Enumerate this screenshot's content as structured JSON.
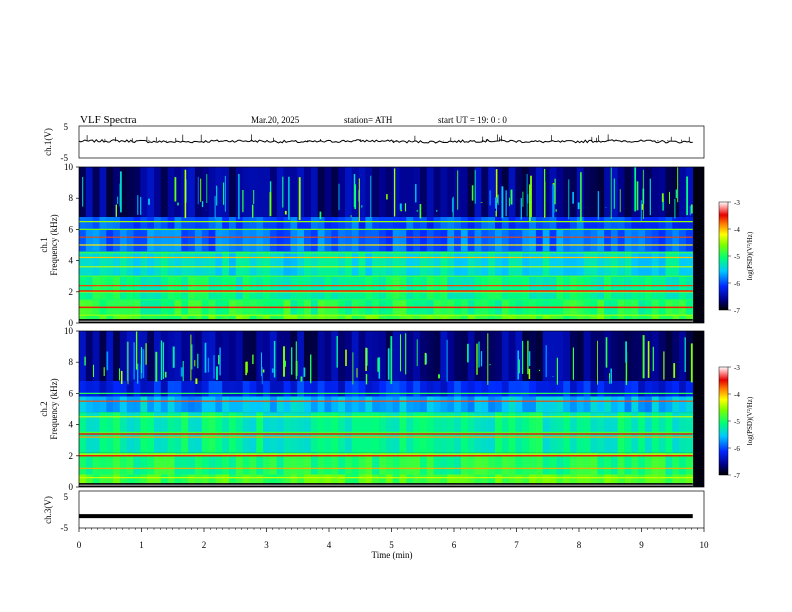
{
  "header": {
    "title": "VLF  Spectra",
    "date": "Mar.20, 2025",
    "station": "station= ATH",
    "start": "start  UT  =    19: 0   : 0"
  },
  "chart_data": [
    {
      "type": "line",
      "name_label": "ch.1(V)",
      "ylabel": "ch.1(V)",
      "ylim": [
        -5,
        5
      ],
      "yticks": [
        "5",
        "-5"
      ],
      "xlim": [
        0,
        10
      ],
      "trace_level": 0.2,
      "trace_amplitude": 0.4,
      "trace_end": 9.82
    },
    {
      "type": "heatmap",
      "ylabel": "Frequency  (kHz)",
      "channel_label": "ch.1",
      "ylim": [
        0,
        10
      ],
      "yticks": [
        "0",
        "2",
        "4",
        "6",
        "8",
        "10"
      ],
      "xlim": [
        0,
        10
      ],
      "data_end": 9.82,
      "colorbar": {
        "label": "log(PSD)(V²/Hz)",
        "range": [
          -7,
          -3
        ],
        "ticks": [
          "-3",
          "-4",
          "-5",
          "-6",
          "-7"
        ]
      },
      "bands_khz": [
        0.15,
        0.5,
        1.0,
        1.5,
        2.0,
        2.4,
        3.0,
        3.6,
        4.2,
        4.5,
        5.0,
        5.5,
        6.0,
        6.5
      ]
    },
    {
      "type": "heatmap",
      "ylabel": "Frequency  (kHz)",
      "channel_label": "ch.2",
      "ylim": [
        0,
        10
      ],
      "yticks": [
        "0",
        "2",
        "4",
        "6",
        "8",
        "10"
      ],
      "xlim": [
        0,
        10
      ],
      "data_end": 9.82,
      "colorbar": {
        "label": "log(PSD)(V²/Hz)",
        "range": [
          -7,
          -3
        ],
        "ticks": [
          "-3",
          "-4",
          "-5",
          "-6",
          "-7"
        ]
      },
      "bands_khz": [
        0.15,
        0.6,
        1.2,
        2.0,
        2.1,
        3.2,
        3.5,
        4.5,
        5.5,
        6.0
      ]
    },
    {
      "type": "line",
      "ylabel": "ch.3(V)",
      "ylim": [
        -5,
        5
      ],
      "yticks": [
        "5",
        "-5"
      ],
      "xlim": [
        0,
        10
      ],
      "xticks": [
        "0",
        "1",
        "2",
        "3",
        "4",
        "5",
        "6",
        "7",
        "8",
        "9",
        "10"
      ],
      "xlabel": "Time  (min)",
      "trace_level": -1.8,
      "trace_end": 9.82
    }
  ]
}
